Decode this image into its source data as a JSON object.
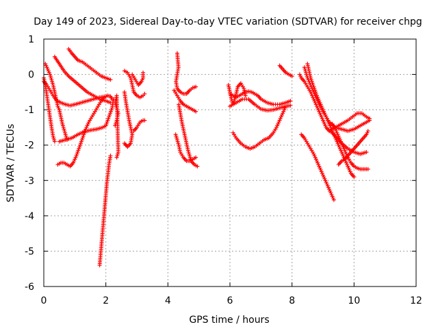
{
  "chart_data": {
    "type": "scatter",
    "title": "Day 149 of 2023, Sidereal Day-to-day VTEC variation (SDTVAR) for receiver chpg",
    "xlabel": "GPS time / hours",
    "ylabel": "SDTVAR / TECUs",
    "xlim": [
      0,
      12
    ],
    "ylim": [
      -6,
      1
    ],
    "xticks": [
      "0",
      "2",
      "4",
      "6",
      "8",
      "10",
      "12"
    ],
    "yticks": [
      "-6",
      "-5",
      "-4",
      "-3",
      "-2",
      "-1",
      "0",
      "1"
    ],
    "grid": true,
    "marker": "plus",
    "color": "#ff0000",
    "tracks": [
      [
        [
          0.0,
          -0.2
        ],
        [
          0.1,
          -0.3
        ],
        [
          0.2,
          -0.45
        ],
        [
          0.3,
          -0.6
        ],
        [
          0.4,
          -0.72
        ],
        [
          0.55,
          -0.8
        ],
        [
          0.7,
          -0.85
        ],
        [
          0.85,
          -0.88
        ],
        [
          1.0,
          -0.85
        ],
        [
          1.2,
          -0.8
        ],
        [
          1.4,
          -0.75
        ],
        [
          1.6,
          -0.7
        ],
        [
          1.8,
          -0.65
        ],
        [
          2.0,
          -0.62
        ]
      ],
      [
        [
          0.05,
          0.3
        ],
        [
          0.1,
          0.2
        ],
        [
          0.15,
          0.1
        ],
        [
          0.2,
          0.0
        ],
        [
          0.25,
          -0.15
        ],
        [
          0.3,
          -0.3
        ],
        [
          0.35,
          -0.5
        ],
        [
          0.4,
          -0.7
        ],
        [
          0.45,
          -0.9
        ],
        [
          0.5,
          -1.0
        ],
        [
          0.55,
          -1.2
        ],
        [
          0.6,
          -1.4
        ],
        [
          0.65,
          -1.55
        ],
        [
          0.7,
          -1.7
        ],
        [
          0.75,
          -1.85
        ]
      ],
      [
        [
          0.35,
          0.5
        ],
        [
          0.5,
          0.3
        ],
        [
          0.65,
          0.1
        ],
        [
          0.8,
          -0.05
        ],
        [
          1.0,
          -0.2
        ],
        [
          1.2,
          -0.35
        ],
        [
          1.4,
          -0.5
        ],
        [
          1.6,
          -0.6
        ],
        [
          1.8,
          -0.7
        ],
        [
          2.0,
          -0.75
        ],
        [
          2.15,
          -0.8
        ]
      ],
      [
        [
          0.8,
          0.72
        ],
        [
          0.9,
          0.6
        ],
        [
          1.0,
          0.5
        ],
        [
          1.1,
          0.4
        ],
        [
          1.25,
          0.35
        ],
        [
          1.4,
          0.25
        ],
        [
          1.55,
          0.15
        ],
        [
          1.7,
          0.05
        ],
        [
          1.85,
          -0.05
        ],
        [
          2.0,
          -0.1
        ],
        [
          2.15,
          -0.15
        ]
      ],
      [
        [
          0.5,
          -1.9
        ],
        [
          0.7,
          -1.85
        ],
        [
          0.9,
          -1.8
        ],
        [
          1.1,
          -1.7
        ],
        [
          1.3,
          -1.62
        ],
        [
          1.5,
          -1.58
        ],
        [
          1.7,
          -1.55
        ],
        [
          1.9,
          -1.5
        ],
        [
          2.0,
          -1.45
        ],
        [
          2.1,
          -1.2
        ],
        [
          2.2,
          -0.95
        ],
        [
          2.25,
          -0.7
        ]
      ],
      [
        [
          0.0,
          -0.1
        ],
        [
          0.05,
          -0.3
        ],
        [
          0.1,
          -0.6
        ],
        [
          0.15,
          -0.9
        ],
        [
          0.2,
          -1.2
        ],
        [
          0.25,
          -1.5
        ],
        [
          0.3,
          -1.75
        ],
        [
          0.35,
          -1.9
        ]
      ],
      [
        [
          0.45,
          -2.55
        ],
        [
          0.55,
          -2.5
        ],
        [
          0.65,
          -2.5
        ],
        [
          0.75,
          -2.55
        ],
        [
          0.85,
          -2.6
        ],
        [
          0.95,
          -2.5
        ],
        [
          1.05,
          -2.3
        ],
        [
          1.15,
          -2.05
        ],
        [
          1.25,
          -1.8
        ],
        [
          1.35,
          -1.55
        ],
        [
          1.45,
          -1.35
        ],
        [
          1.55,
          -1.2
        ],
        [
          1.65,
          -1.05
        ],
        [
          1.75,
          -0.9
        ],
        [
          1.85,
          -0.75
        ],
        [
          1.95,
          -0.65
        ],
        [
          2.05,
          -0.6
        ],
        [
          2.15,
          -0.62
        ],
        [
          2.2,
          -0.7
        ]
      ],
      [
        [
          1.8,
          -5.4
        ],
        [
          1.83,
          -5.1
        ],
        [
          1.86,
          -4.8
        ],
        [
          1.89,
          -4.5
        ],
        [
          1.92,
          -4.2
        ],
        [
          1.95,
          -3.9
        ],
        [
          1.98,
          -3.6
        ],
        [
          2.01,
          -3.3
        ],
        [
          2.04,
          -3.0
        ],
        [
          2.07,
          -2.8
        ],
        [
          2.1,
          -2.55
        ],
        [
          2.15,
          -2.3
        ]
      ],
      [
        [
          2.3,
          -1.45
        ],
        [
          2.35,
          -1.3
        ],
        [
          2.4,
          -1.1
        ],
        [
          2.3,
          -0.8
        ],
        [
          2.35,
          -0.6
        ],
        [
          2.4,
          -2.2
        ],
        [
          2.35,
          -2.35
        ]
      ],
      [
        [
          2.6,
          -0.5
        ],
        [
          2.65,
          -0.8
        ],
        [
          2.7,
          -1.05
        ],
        [
          2.75,
          -1.3
        ],
        [
          2.8,
          -1.5
        ],
        [
          2.85,
          -1.7
        ],
        [
          2.8,
          -1.95
        ],
        [
          2.7,
          -2.05
        ],
        [
          2.6,
          -1.95
        ],
        [
          2.65,
          -2.0
        ]
      ],
      [
        [
          2.6,
          0.1
        ],
        [
          2.7,
          0.05
        ],
        [
          2.8,
          -0.1
        ],
        [
          2.85,
          -0.3
        ],
        [
          2.9,
          -0.5
        ],
        [
          3.0,
          -0.6
        ],
        [
          3.1,
          -0.65
        ],
        [
          3.2,
          -0.6
        ],
        [
          3.25,
          -0.55
        ]
      ],
      [
        [
          2.85,
          0.0
        ],
        [
          2.95,
          -0.15
        ],
        [
          3.05,
          -0.3
        ],
        [
          3.15,
          -0.2
        ],
        [
          3.2,
          -0.1
        ],
        [
          3.2,
          0.05
        ]
      ],
      [
        [
          2.9,
          -1.6
        ],
        [
          3.0,
          -1.5
        ],
        [
          3.1,
          -1.35
        ],
        [
          3.2,
          -1.3
        ],
        [
          3.25,
          -1.3
        ]
      ],
      [
        [
          4.3,
          0.6
        ],
        [
          4.32,
          0.4
        ],
        [
          4.34,
          0.2
        ],
        [
          4.3,
          0.0
        ],
        [
          4.26,
          -0.2
        ],
        [
          4.3,
          -0.4
        ],
        [
          4.4,
          -0.5
        ],
        [
          4.5,
          -0.55
        ],
        [
          4.6,
          -0.55
        ],
        [
          4.7,
          -0.45
        ],
        [
          4.8,
          -0.38
        ],
        [
          4.9,
          -0.35
        ]
      ],
      [
        [
          4.2,
          -0.45
        ],
        [
          4.3,
          -0.6
        ],
        [
          4.4,
          -0.75
        ],
        [
          4.5,
          -0.85
        ],
        [
          4.6,
          -0.9
        ],
        [
          4.7,
          -0.95
        ],
        [
          4.8,
          -1.0
        ],
        [
          4.9,
          -1.05
        ]
      ],
      [
        [
          4.35,
          -0.85
        ],
        [
          4.4,
          -1.1
        ],
        [
          4.45,
          -1.35
        ],
        [
          4.5,
          -1.55
        ],
        [
          4.55,
          -1.75
        ],
        [
          4.6,
          -1.95
        ],
        [
          4.65,
          -2.15
        ],
        [
          4.7,
          -2.3
        ],
        [
          4.75,
          -2.45
        ],
        [
          4.85,
          -2.55
        ],
        [
          4.95,
          -2.6
        ]
      ],
      [
        [
          4.25,
          -1.7
        ],
        [
          4.3,
          -1.85
        ],
        [
          4.35,
          -2.0
        ],
        [
          4.4,
          -2.2
        ],
        [
          4.5,
          -2.35
        ],
        [
          4.6,
          -2.45
        ],
        [
          4.7,
          -2.45
        ],
        [
          4.8,
          -2.4
        ],
        [
          4.9,
          -2.35
        ]
      ],
      [
        [
          6.0,
          -0.55
        ],
        [
          6.1,
          -0.6
        ],
        [
          6.2,
          -0.65
        ],
        [
          6.3,
          -0.6
        ],
        [
          6.4,
          -0.55
        ],
        [
          6.5,
          -0.5
        ],
        [
          6.6,
          -0.48
        ],
        [
          6.7,
          -0.5
        ],
        [
          6.8,
          -0.55
        ],
        [
          6.9,
          -0.6
        ],
        [
          7.0,
          -0.7
        ],
        [
          7.2,
          -0.8
        ],
        [
          7.4,
          -0.85
        ],
        [
          7.6,
          -0.85
        ],
        [
          7.8,
          -0.8
        ],
        [
          7.95,
          -0.75
        ]
      ],
      [
        [
          6.0,
          -0.9
        ],
        [
          6.2,
          -0.8
        ],
        [
          6.4,
          -0.7
        ],
        [
          6.6,
          -0.7
        ],
        [
          6.8,
          -0.85
        ],
        [
          7.0,
          -0.98
        ],
        [
          7.2,
          -1.02
        ],
        [
          7.4,
          -1.0
        ],
        [
          7.6,
          -0.95
        ],
        [
          7.8,
          -0.9
        ],
        [
          7.95,
          -0.88
        ]
      ],
      [
        [
          6.1,
          -1.65
        ],
        [
          6.2,
          -1.8
        ],
        [
          6.35,
          -1.95
        ],
        [
          6.5,
          -2.05
        ],
        [
          6.65,
          -2.1
        ],
        [
          6.8,
          -2.05
        ],
        [
          6.95,
          -1.95
        ],
        [
          7.1,
          -1.85
        ],
        [
          7.25,
          -1.8
        ],
        [
          7.4,
          -1.65
        ],
        [
          7.5,
          -1.5
        ],
        [
          7.6,
          -1.3
        ],
        [
          7.7,
          -1.1
        ],
        [
          7.8,
          -0.9
        ]
      ],
      [
        [
          5.95,
          -0.3
        ],
        [
          6.0,
          -0.5
        ],
        [
          6.05,
          -0.7
        ],
        [
          6.1,
          -0.85
        ],
        [
          6.2,
          -0.55
        ],
        [
          6.25,
          -0.35
        ],
        [
          6.35,
          -0.25
        ],
        [
          6.45,
          -0.4
        ],
        [
          6.5,
          -0.6
        ]
      ],
      [
        [
          7.6,
          0.25
        ],
        [
          7.7,
          0.15
        ],
        [
          7.8,
          0.05
        ],
        [
          7.9,
          0.0
        ],
        [
          8.0,
          -0.05
        ]
      ],
      [
        [
          8.25,
          0.0
        ],
        [
          8.3,
          -0.1
        ],
        [
          8.4,
          -0.2
        ],
        [
          8.5,
          -0.35
        ],
        [
          8.6,
          -0.5
        ],
        [
          8.7,
          -0.7
        ],
        [
          8.8,
          -0.9
        ],
        [
          8.9,
          -1.1
        ],
        [
          9.0,
          -1.3
        ],
        [
          9.1,
          -1.5
        ],
        [
          9.2,
          -1.6
        ],
        [
          9.3,
          -1.65
        ],
        [
          9.4,
          -1.75
        ],
        [
          9.5,
          -1.85
        ],
        [
          9.6,
          -1.95
        ],
        [
          9.8,
          -2.1
        ],
        [
          10.0,
          -2.2
        ],
        [
          10.2,
          -2.25
        ],
        [
          10.4,
          -2.2
        ]
      ],
      [
        [
          8.4,
          0.2
        ],
        [
          8.45,
          0.05
        ],
        [
          8.5,
          -0.1
        ],
        [
          8.6,
          -0.3
        ],
        [
          8.7,
          -0.5
        ],
        [
          8.8,
          -0.7
        ],
        [
          8.9,
          -0.9
        ],
        [
          9.0,
          -1.05
        ],
        [
          9.1,
          -1.2
        ],
        [
          9.2,
          -1.35
        ],
        [
          9.4,
          -1.5
        ],
        [
          9.6,
          -1.55
        ],
        [
          9.8,
          -1.6
        ],
        [
          10.0,
          -1.55
        ],
        [
          10.2,
          -1.45
        ],
        [
          10.4,
          -1.35
        ],
        [
          10.5,
          -1.3
        ]
      ],
      [
        [
          8.5,
          0.3
        ],
        [
          8.55,
          0.1
        ],
        [
          8.6,
          -0.1
        ],
        [
          8.7,
          -0.35
        ],
        [
          8.8,
          -0.6
        ],
        [
          8.9,
          -0.8
        ],
        [
          9.0,
          -1.0
        ],
        [
          9.1,
          -1.2
        ],
        [
          9.2,
          -1.4
        ],
        [
          9.3,
          -1.6
        ],
        [
          9.4,
          -1.8
        ],
        [
          9.5,
          -2.0
        ],
        [
          9.6,
          -2.2
        ],
        [
          9.7,
          -2.4
        ],
        [
          9.8,
          -2.6
        ],
        [
          9.9,
          -2.8
        ],
        [
          10.0,
          -2.9
        ]
      ],
      [
        [
          8.3,
          -1.7
        ],
        [
          8.4,
          -1.8
        ],
        [
          8.5,
          -1.95
        ],
        [
          8.6,
          -2.1
        ],
        [
          8.7,
          -2.25
        ],
        [
          8.8,
          -2.45
        ],
        [
          8.9,
          -2.65
        ],
        [
          9.0,
          -2.85
        ],
        [
          9.1,
          -3.05
        ],
        [
          9.2,
          -3.25
        ],
        [
          9.3,
          -3.45
        ],
        [
          9.35,
          -3.55
        ]
      ],
      [
        [
          9.3,
          -1.4
        ],
        [
          9.4,
          -1.55
        ],
        [
          9.5,
          -1.75
        ],
        [
          9.6,
          -1.95
        ],
        [
          9.7,
          -2.15
        ],
        [
          9.8,
          -2.35
        ],
        [
          9.9,
          -2.5
        ],
        [
          10.0,
          -2.6
        ],
        [
          10.1,
          -2.65
        ],
        [
          10.2,
          -2.68
        ],
        [
          10.3,
          -2.68
        ],
        [
          10.45,
          -2.68
        ]
      ],
      [
        [
          9.5,
          -2.55
        ],
        [
          9.6,
          -2.45
        ],
        [
          9.7,
          -2.4
        ],
        [
          9.8,
          -2.3
        ],
        [
          9.9,
          -2.2
        ],
        [
          10.0,
          -2.1
        ],
        [
          10.1,
          -2.0
        ],
        [
          10.2,
          -1.9
        ],
        [
          10.3,
          -1.8
        ],
        [
          10.4,
          -1.7
        ],
        [
          10.45,
          -1.6
        ]
      ],
      [
        [
          9.2,
          -1.6
        ],
        [
          9.4,
          -1.5
        ],
        [
          9.6,
          -1.4
        ],
        [
          9.8,
          -1.3
        ],
        [
          9.95,
          -1.2
        ],
        [
          10.1,
          -1.1
        ],
        [
          10.25,
          -1.1
        ],
        [
          10.4,
          -1.2
        ],
        [
          10.5,
          -1.25
        ]
      ]
    ]
  }
}
